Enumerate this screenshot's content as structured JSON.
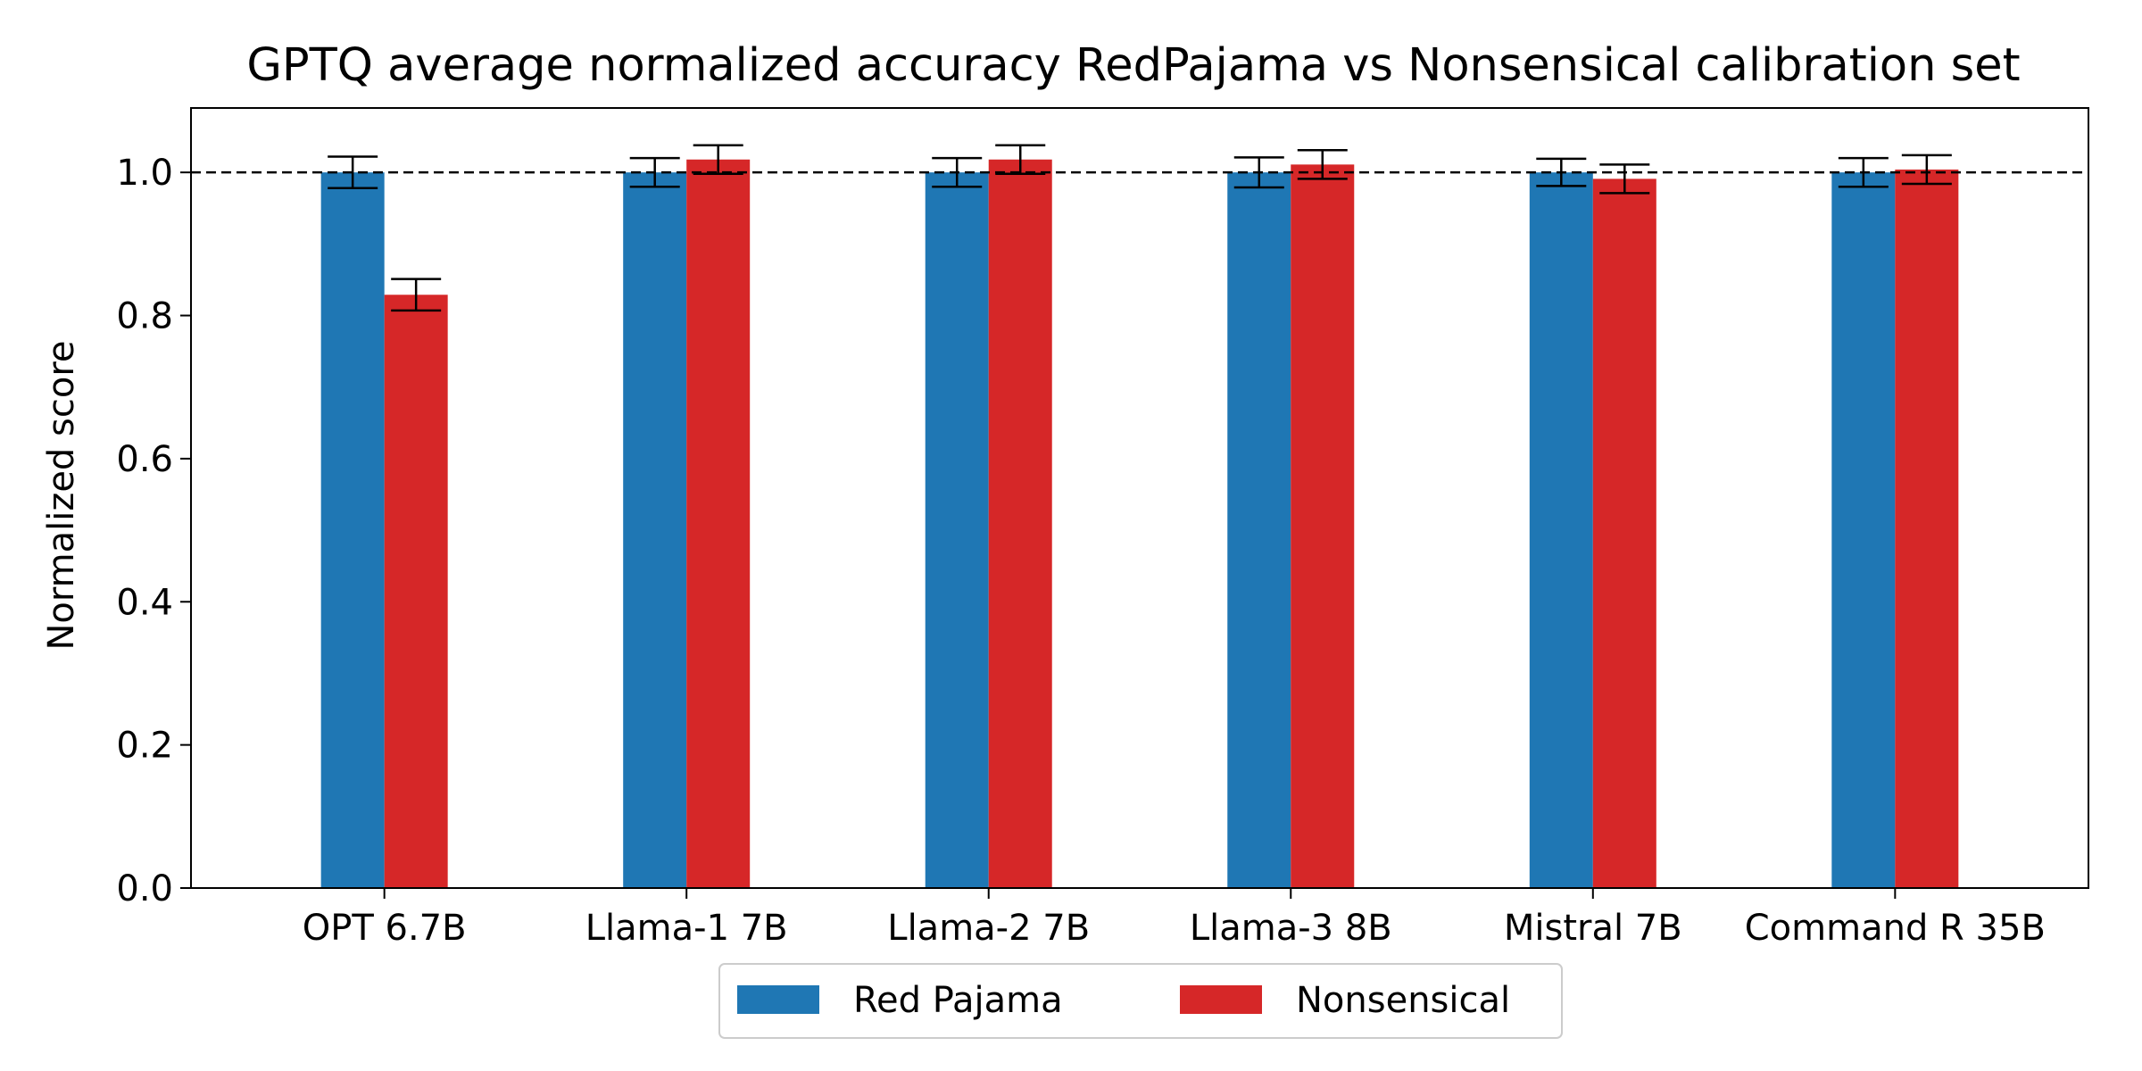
{
  "chart_data": {
    "type": "bar",
    "title": "GPTQ average normalized accuracy RedPajama vs Nonsensical calibration set",
    "xlabel": "",
    "ylabel": "Normalized score",
    "ylim": [
      0,
      1.09
    ],
    "yticks": [
      "0.0",
      "0.2",
      "0.4",
      "0.6",
      "0.8",
      "1.0"
    ],
    "grid": false,
    "legend_position": "bottom-center",
    "reference_line": 1.0,
    "categories": [
      "OPT 6.7B",
      "Llama-1 7B",
      "Llama-2 7B",
      "Llama-3 8B",
      "Mistral 7B",
      "Command R 35B"
    ],
    "series": [
      {
        "name": "Red Pajama",
        "color": "#1f77b4",
        "values": [
          1.0,
          1.0,
          1.0,
          1.0,
          1.0,
          1.0
        ],
        "errors": [
          0.022,
          0.02,
          0.02,
          0.021,
          0.019,
          0.02
        ]
      },
      {
        "name": "Nonsensical",
        "color": "#d62728",
        "values": [
          0.829,
          1.018,
          1.018,
          1.011,
          0.991,
          1.004
        ],
        "errors": [
          0.022,
          0.02,
          0.02,
          0.02,
          0.02,
          0.02
        ]
      }
    ]
  }
}
